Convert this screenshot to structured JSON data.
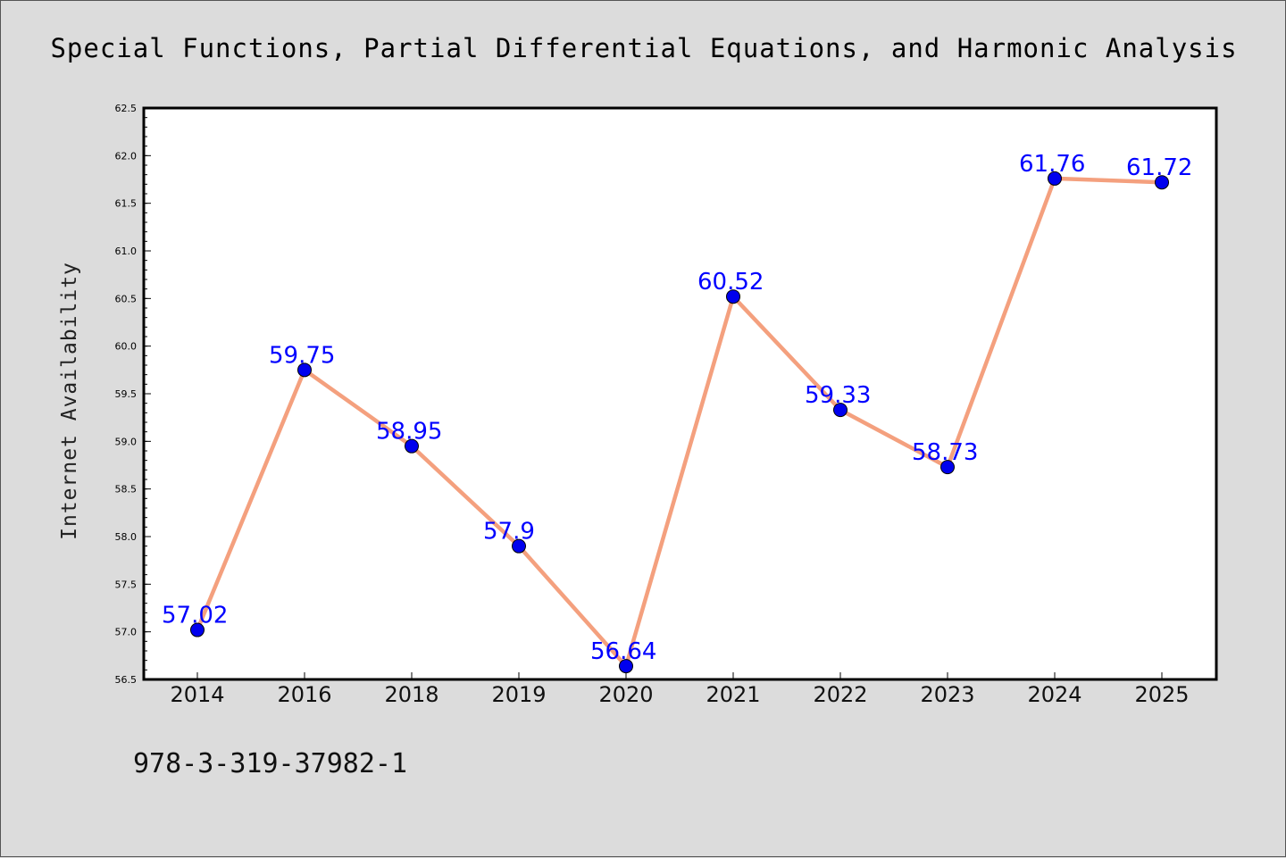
{
  "chart_data": {
    "type": "line",
    "title": "Special Functions, Partial Differential Equations, and Harmonic Analysis",
    "xlabel": "",
    "ylabel": "Internet Availability",
    "categories": [
      "2014",
      "2016",
      "2018",
      "2019",
      "2020",
      "2021",
      "2022",
      "2023",
      "2024",
      "2025"
    ],
    "series": [
      {
        "values": [
          57.02,
          59.75,
          58.95,
          57.9,
          56.64,
          60.52,
          59.33,
          58.73,
          61.76,
          61.72
        ],
        "labels": [
          "57.02",
          "59.75",
          "58.95",
          "57.9",
          "56.64",
          "60.52",
          "59.33",
          "58.73",
          "61.76",
          "61.72"
        ]
      }
    ],
    "ylim": [
      56.5,
      62.5
    ],
    "yticks": [
      "56.5",
      "57.0",
      "57.5",
      "58.0",
      "58.5",
      "59.0",
      "59.5",
      "60.0",
      "60.5",
      "61.0",
      "61.5",
      "62.0",
      "62.5"
    ],
    "grid": false,
    "legend": "none",
    "colors": {
      "line": "#f4a07e",
      "marker": "#0000ee",
      "data_label": "#0000ff",
      "background": "#dcdcdc",
      "plot_area": "#ffffff"
    }
  },
  "footer": {
    "text": "978-3-319-37982-1"
  }
}
